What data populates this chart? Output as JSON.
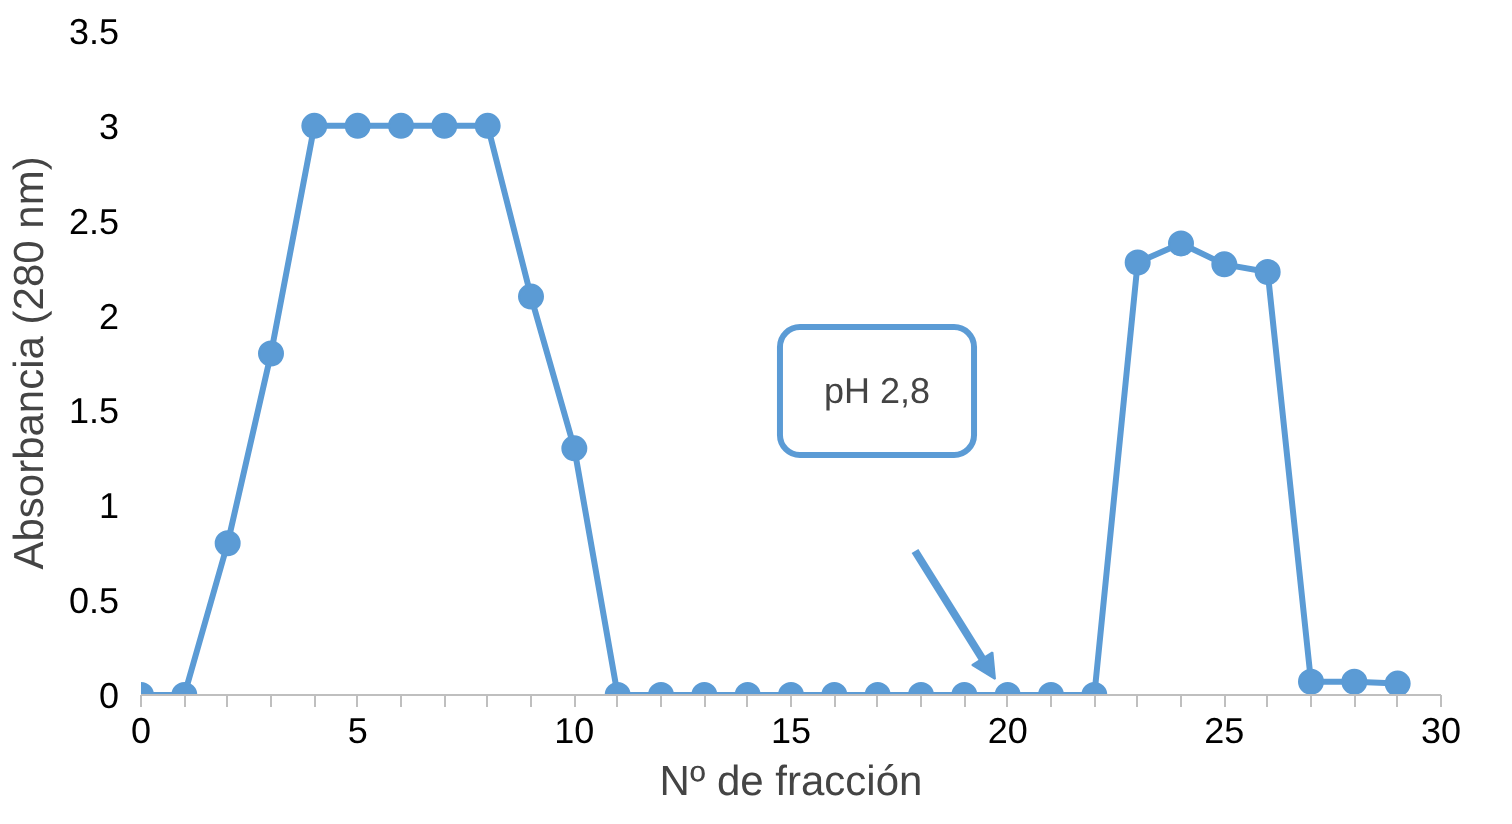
{
  "chart_data": {
    "type": "line",
    "xlabel": "Nº de fracción",
    "ylabel": "Absorbancia (280 nm)",
    "x": [
      0,
      1,
      2,
      3,
      4,
      5,
      6,
      7,
      8,
      9,
      10,
      11,
      12,
      13,
      14,
      15,
      16,
      17,
      18,
      19,
      20,
      21,
      22,
      23,
      24,
      25,
      26,
      27,
      28,
      29
    ],
    "series": [
      {
        "color": "#5b9bd5",
        "values": [
          0,
          0,
          0.8,
          1.8,
          3,
          3,
          3,
          3,
          3,
          2.1,
          1.3,
          0,
          0,
          0,
          0,
          0,
          0,
          0,
          0,
          0,
          0,
          0,
          0,
          2.28,
          2.38,
          2.27,
          2.23,
          0.07,
          0.07,
          0.06
        ]
      }
    ],
    "xlim": [
      0,
      30
    ],
    "xticks": [
      0,
      5,
      10,
      15,
      20,
      25,
      30
    ],
    "ylim": [
      0,
      3.5
    ],
    "yticks": [
      0,
      0.5,
      1,
      1.5,
      2,
      2.5,
      3,
      3.5
    ],
    "grid": false,
    "marker": "circle",
    "line_style": "solid",
    "annotations": [
      "pH 2,8"
    ]
  }
}
